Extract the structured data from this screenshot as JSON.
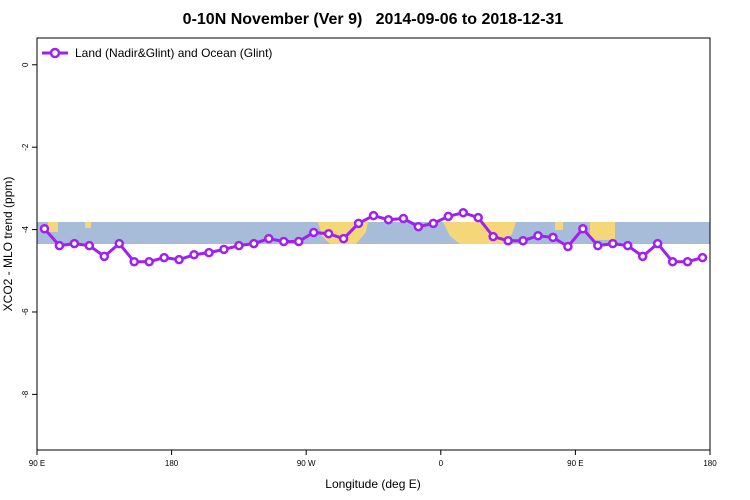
{
  "chart_data": {
    "type": "line",
    "title": "0-10N November (Ver 9)   2014-09-06 to 2018-12-31",
    "xlabel": "Longitude (deg E)",
    "ylabel": "XCO2 - MLO trend (ppm)",
    "xlim": [
      90,
      540
    ],
    "xticks": [
      {
        "value": 90,
        "label": "90 E"
      },
      180,
      {
        "value": 270,
        "label": "90 W"
      },
      {
        "value": 360,
        "label": "0"
      },
      {
        "value": 450,
        "label": "90 E"
      },
      {
        "value": 540,
        "label": "180"
      }
    ],
    "ylim": [
      -9.35,
      0.65
    ],
    "yticks": [
      0,
      -2,
      -4,
      -6,
      -8
    ],
    "legend": "top-left",
    "x": [
      95,
      105,
      115,
      125,
      135,
      145,
      155,
      165,
      175,
      185,
      195,
      205,
      215,
      225,
      235,
      245,
      255,
      265,
      275,
      285,
      295,
      305,
      315,
      325,
      335,
      345,
      355,
      365,
      375,
      385,
      395,
      405,
      415,
      425,
      435,
      445,
      455,
      465,
      475,
      485,
      495,
      505,
      515,
      525,
      535
    ],
    "series": [
      {
        "name": "Land (Nadir&Glint) and Ocean (Glint)",
        "color": "#a020f0",
        "values": [
          -3.98,
          -4.39,
          -4.34,
          -4.39,
          -4.65,
          -4.34,
          -4.78,
          -4.78,
          -4.68,
          -4.73,
          -4.61,
          -4.56,
          -4.48,
          -4.39,
          -4.34,
          -4.22,
          -4.29,
          -4.29,
          -4.07,
          -4.1,
          -4.22,
          -3.85,
          -3.66,
          -3.76,
          -3.73,
          -3.93,
          -3.85,
          -3.68,
          -3.59,
          -3.71,
          -4.17,
          -4.27,
          -4.27,
          -4.15,
          -4.19,
          -4.41,
          -3.98,
          -4.39,
          -4.34,
          -4.39,
          -4.65,
          -4.34,
          -4.78,
          -4.78,
          -4.68
        ]
      }
    ]
  }
}
